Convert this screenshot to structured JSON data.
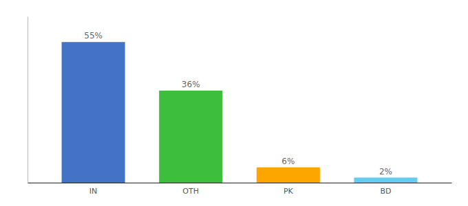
{
  "chart_data": {
    "type": "bar",
    "categories": [
      "IN",
      "OTH",
      "PK",
      "BD"
    ],
    "values": [
      55,
      36,
      6,
      2
    ],
    "value_labels": [
      "55%",
      "36%",
      "6%",
      "2%"
    ],
    "colors": [
      "#4472C4",
      "#3DBE3D",
      "#FFA500",
      "#66CCEE"
    ],
    "ylim": [
      0,
      65
    ],
    "data_labels": true,
    "tick_labels": "x",
    "grid": false
  }
}
